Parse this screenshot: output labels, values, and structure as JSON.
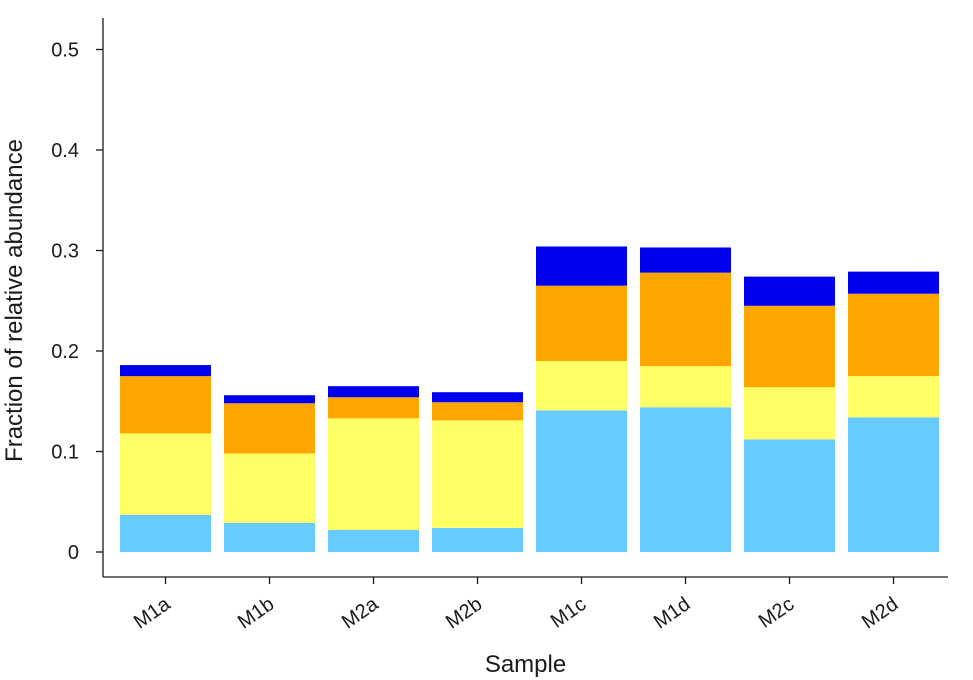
{
  "chart_data": {
    "type": "bar",
    "stacked": true,
    "xlabel": "Sample",
    "ylabel": "Fraction of relative abundance",
    "ylim": [
      0,
      0.52
    ],
    "yticks": [
      0,
      0.1,
      0.2,
      0.3,
      0.4,
      0.5
    ],
    "ytick_labels": [
      "0",
      "0.1",
      "0.2",
      "0.3",
      "0.4",
      "0.5"
    ],
    "categories": [
      "M1a",
      "M1b",
      "M2a",
      "M2b",
      "M1c",
      "M1d",
      "M2c",
      "M2d"
    ],
    "grid": false,
    "legend": "none",
    "series": [
      {
        "color": "#66ccff",
        "values": [
          0.037,
          0.029,
          0.022,
          0.024,
          0.141,
          0.144,
          0.112,
          0.134
        ]
      },
      {
        "color": "#ffff66",
        "values": [
          0.081,
          0.069,
          0.111,
          0.107,
          0.049,
          0.041,
          0.052,
          0.041
        ]
      },
      {
        "color": "#ffa500",
        "values": [
          0.057,
          0.05,
          0.021,
          0.018,
          0.075,
          0.093,
          0.081,
          0.082
        ]
      },
      {
        "color": "#0000ee",
        "values": [
          0.011,
          0.008,
          0.011,
          0.01,
          0.039,
          0.025,
          0.029,
          0.022
        ]
      }
    ]
  }
}
